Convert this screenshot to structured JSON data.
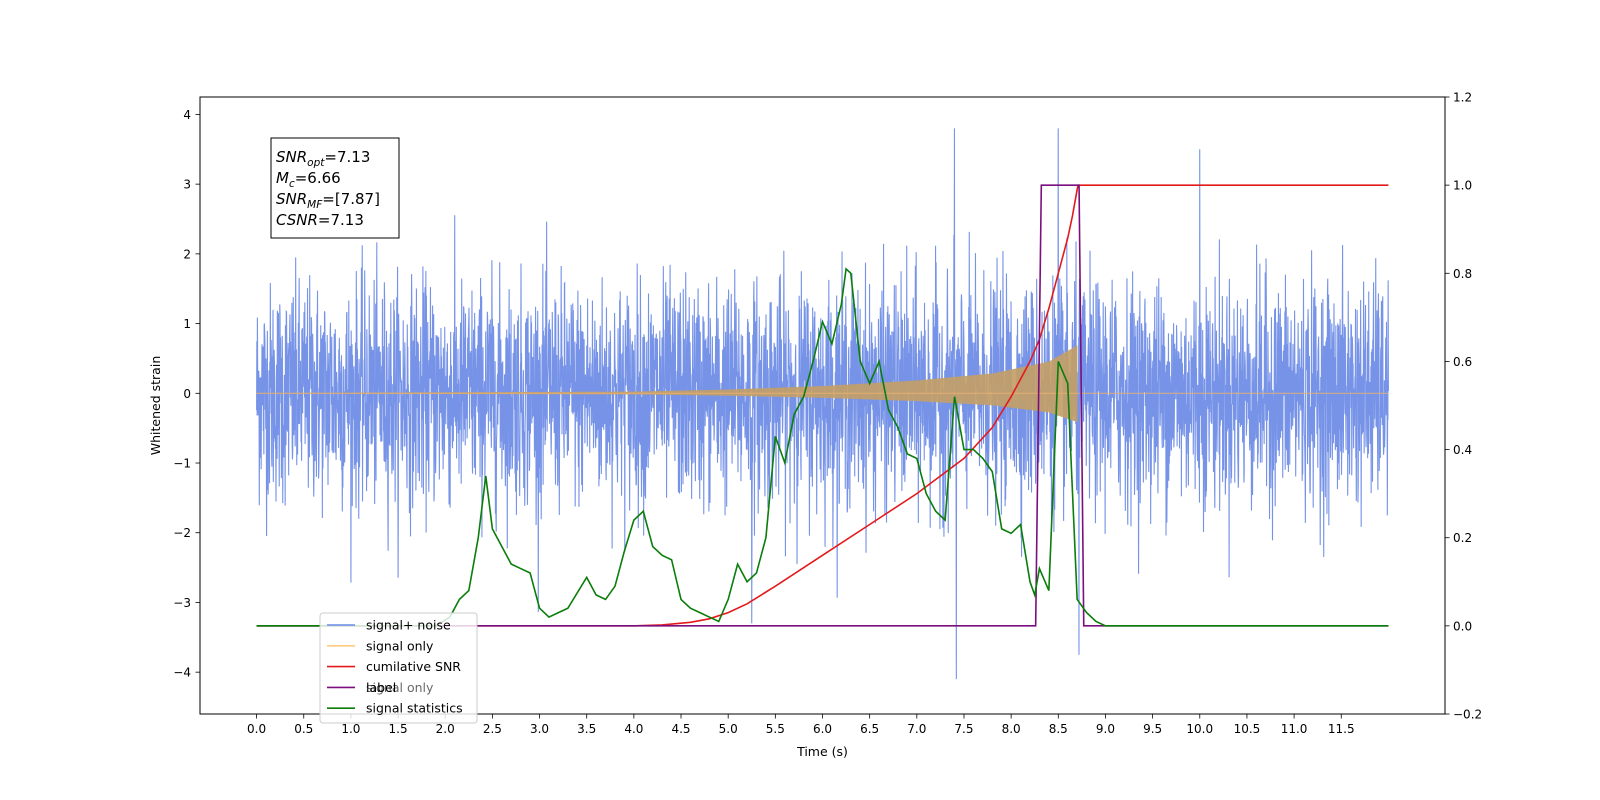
{
  "chart_data": {
    "type": "line",
    "title": "",
    "xlabel": "Time (s)",
    "ylabel": "Whitened strain",
    "xlim": [
      -0.6,
      12.6
    ],
    "ylim": [
      -4.6,
      4.25
    ],
    "y2lim": [
      -0.2,
      1.2
    ],
    "x_ticks": [
      "0.0",
      "0.5",
      "1.0",
      "1.5",
      "2.0",
      "2.5",
      "3.0",
      "3.5",
      "4.0",
      "4.5",
      "5.0",
      "5.5",
      "6.0",
      "6.5",
      "7.0",
      "7.5",
      "8.0",
      "8.5",
      "9.0",
      "9.5",
      "10.0",
      "10.5",
      "11.0",
      "11.5"
    ],
    "y_ticks": [
      "−4",
      "−3",
      "−2",
      "−1",
      "0",
      "1",
      "2",
      "3",
      "4"
    ],
    "y2_ticks": [
      "−0.2",
      "0.0",
      "0.2",
      "0.4",
      "0.6",
      "0.8",
      "1.0",
      "1.2"
    ],
    "grid": false,
    "legend_placement": "lower-left",
    "annotation": [
      {
        "sym": "SNR",
        "sub": "opt",
        "text": "=7.13"
      },
      {
        "sym": "M",
        "sub": "c",
        "text": "=6.66"
      },
      {
        "sym": "SNR",
        "sub": "MF",
        "text": "=[7.87]"
      },
      {
        "sym": "CSNR",
        "sub": "",
        "text": "=7.13"
      }
    ],
    "series": [
      {
        "name": "signal+ noise",
        "axis": "left",
        "color": "#6a8ae6",
        "kind": "noise",
        "x_range": [
          0.0,
          12.0
        ],
        "std": 0.78,
        "peaks_x": [
          7.4,
          8.5,
          10.0
        ],
        "peaks_y": [
          3.8,
          3.8,
          3.5
        ],
        "troughs_x": [
          7.42,
          8.72,
          5.25
        ],
        "troughs_y": [
          -4.1,
          -3.75,
          -3.3
        ]
      },
      {
        "name": "signal only",
        "axis": "left",
        "color": "#c8a070",
        "kind": "chirp",
        "x_range": [
          0.0,
          8.7
        ],
        "values": [
          0.0,
          0.02,
          0.05,
          0.1,
          0.18,
          0.28,
          0.45,
          0.68
        ],
        "x": [
          0.0,
          4.0,
          5.0,
          6.0,
          7.0,
          7.8,
          8.4,
          8.7
        ]
      },
      {
        "name": "cumilative SNR",
        "axis": "right",
        "color": "#e31a1c",
        "x": [
          0.0,
          4.0,
          4.3,
          4.6,
          4.8,
          5.0,
          5.2,
          5.5,
          6.0,
          6.5,
          7.0,
          7.5,
          7.8,
          8.0,
          8.2,
          8.3,
          8.4,
          8.5,
          8.6,
          8.65,
          8.7,
          8.71,
          12.0
        ],
        "values": [
          0.0,
          0.0,
          0.002,
          0.008,
          0.016,
          0.03,
          0.05,
          0.09,
          0.16,
          0.23,
          0.3,
          0.38,
          0.45,
          0.52,
          0.6,
          0.65,
          0.72,
          0.8,
          0.88,
          0.93,
          0.99,
          1.0,
          1.0
        ]
      },
      {
        "name": "label",
        "axis": "right",
        "color": "#7b0f7d",
        "x": [
          0.0,
          8.26,
          8.32,
          8.72,
          8.77,
          12.0
        ],
        "values": [
          0.0,
          0.0,
          1.0,
          1.0,
          0.0,
          0.0
        ]
      },
      {
        "name": "signal statistics",
        "axis": "right",
        "color": "#0a7d0a",
        "x": [
          0.0,
          1.0,
          1.9,
          2.05,
          2.15,
          2.25,
          2.35,
          2.43,
          2.5,
          2.6,
          2.7,
          2.8,
          2.9,
          3.0,
          3.1,
          3.2,
          3.3,
          3.5,
          3.6,
          3.7,
          3.8,
          3.9,
          4.0,
          4.1,
          4.2,
          4.3,
          4.4,
          4.5,
          4.6,
          4.7,
          4.8,
          4.9,
          5.0,
          5.1,
          5.2,
          5.3,
          5.4,
          5.5,
          5.6,
          5.7,
          5.8,
          5.9,
          6.0,
          6.1,
          6.2,
          6.25,
          6.3,
          6.4,
          6.5,
          6.6,
          6.7,
          6.8,
          6.9,
          7.0,
          7.1,
          7.2,
          7.3,
          7.4,
          7.5,
          7.6,
          7.7,
          7.8,
          7.9,
          8.0,
          8.1,
          8.2,
          8.25,
          8.3,
          8.4,
          8.5,
          8.6,
          8.7,
          8.8,
          8.9,
          9.0,
          9.5,
          9.8,
          10.0,
          12.0
        ],
        "values": [
          0.0,
          0.0,
          0.0,
          0.02,
          0.06,
          0.08,
          0.2,
          0.34,
          0.22,
          0.18,
          0.14,
          0.13,
          0.12,
          0.04,
          0.02,
          0.03,
          0.04,
          0.11,
          0.07,
          0.06,
          0.09,
          0.17,
          0.24,
          0.26,
          0.18,
          0.16,
          0.15,
          0.06,
          0.04,
          0.03,
          0.02,
          0.01,
          0.06,
          0.14,
          0.1,
          0.12,
          0.2,
          0.43,
          0.37,
          0.48,
          0.52,
          0.6,
          0.69,
          0.64,
          0.73,
          0.81,
          0.8,
          0.6,
          0.55,
          0.6,
          0.49,
          0.45,
          0.39,
          0.38,
          0.3,
          0.26,
          0.24,
          0.52,
          0.4,
          0.4,
          0.38,
          0.35,
          0.22,
          0.21,
          0.23,
          0.1,
          0.07,
          0.13,
          0.08,
          0.6,
          0.55,
          0.06,
          0.03,
          0.01,
          0.0,
          0.0,
          0.0,
          0.0,
          0.0
        ]
      }
    ],
    "legend_entries": [
      "signal+ noise",
      "signal only",
      "cumilative SNR",
      "label",
      "signal statistics"
    ],
    "legend_underlay_text": "signal only"
  }
}
